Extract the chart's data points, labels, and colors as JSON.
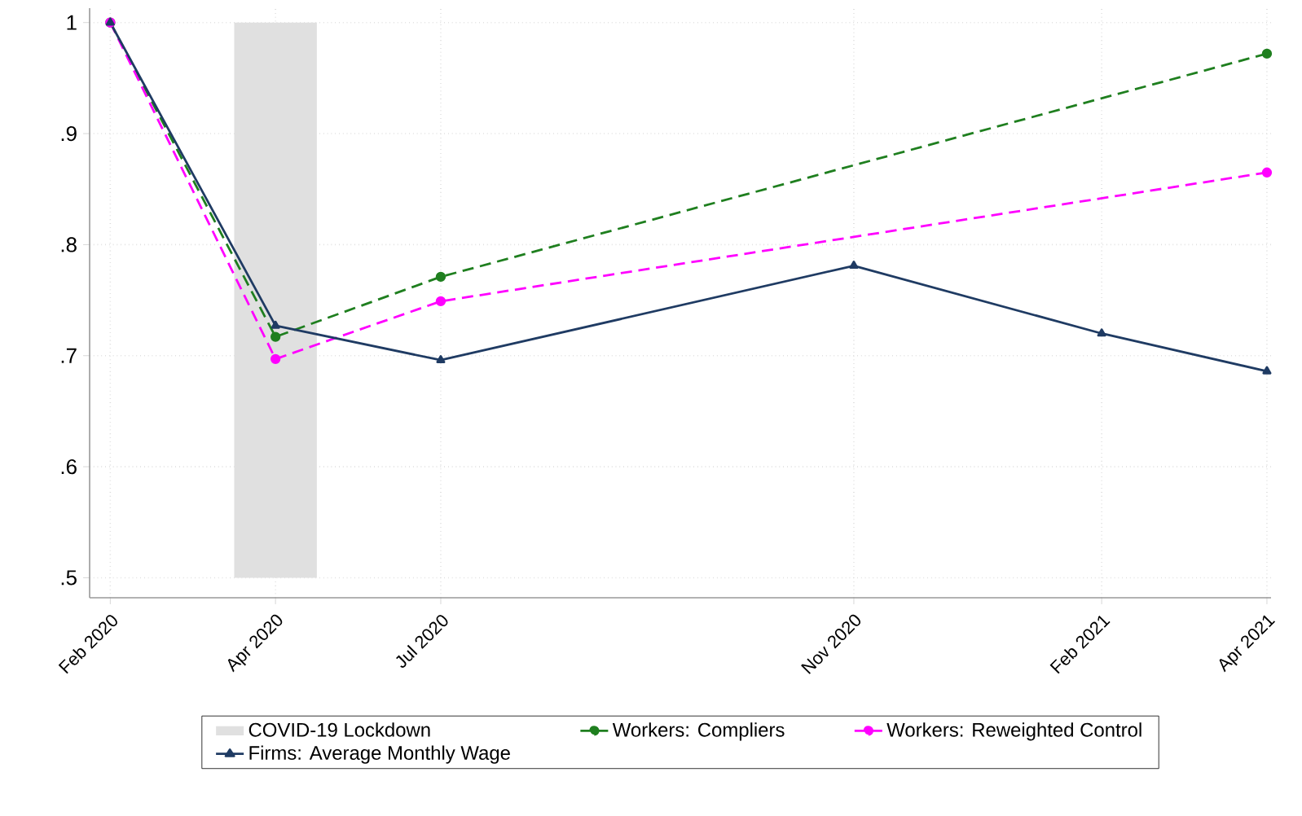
{
  "chart_data": {
    "type": "line",
    "categories": [
      "Feb 2020",
      null,
      "Apr 2020",
      null,
      "Jul 2020",
      null,
      null,
      null,
      null,
      "Nov 2020",
      null,
      null,
      "Feb 2021",
      null,
      "Apr 2021"
    ],
    "ylim": [
      0.482,
      1.013
    ],
    "yticks": [
      {
        "value": 0.5,
        "label": ".5"
      },
      {
        "value": 0.6,
        "label": ".6"
      },
      {
        "value": 0.7,
        "label": ".7"
      },
      {
        "value": 0.8,
        "label": ".8"
      },
      {
        "value": 0.9,
        "label": ".9"
      },
      {
        "value": 1,
        "label": "1"
      }
    ],
    "grid": true,
    "legend": "bottom",
    "bands": [
      {
        "axis": "x",
        "from": "Apr 2020",
        "to": "Apr 2020",
        "label": "COVID-19 Lockdown",
        "color": "#e0e0e0"
      }
    ],
    "series": [
      {
        "name": "Workers: Compliers",
        "color": "#1f7f1f",
        "marker": "circle",
        "line_style": "dashed",
        "values": [
          1,
          null,
          0.717,
          null,
          0.771,
          null,
          null,
          null,
          null,
          null,
          null,
          null,
          null,
          null,
          0.972
        ]
      },
      {
        "name": "Workers: Reweighted Control",
        "color": "#ff00ff",
        "marker": "circle",
        "line_style": "dashed",
        "values": [
          1,
          null,
          0.697,
          null,
          0.749,
          null,
          null,
          null,
          null,
          null,
          null,
          null,
          null,
          null,
          0.865
        ]
      },
      {
        "name": "Firms: Average Monthly Wage",
        "color": "#1f3b63",
        "marker": "triangle",
        "line_style": "solid",
        "values": [
          1,
          null,
          0.727,
          null,
          0.696,
          null,
          null,
          null,
          null,
          0.781,
          null,
          null,
          0.72,
          null,
          0.686
        ]
      }
    ]
  }
}
